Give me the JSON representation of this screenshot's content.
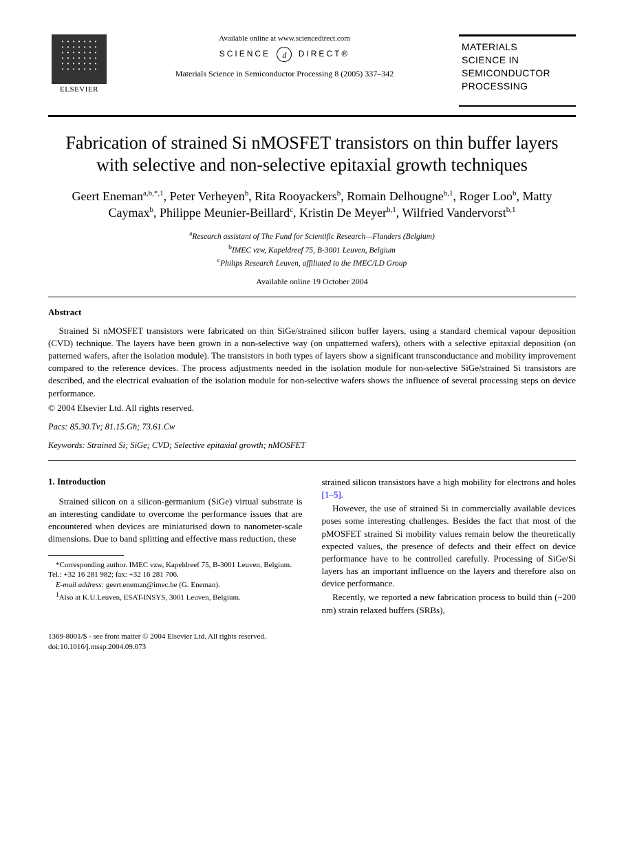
{
  "header": {
    "publisher": "ELSEVIER",
    "available_online": "Available online at www.sciencedirect.com",
    "sd_left": "SCIENCE",
    "sd_d": "d",
    "sd_right": "DIRECT®",
    "citation": "Materials Science in Semiconductor Processing 8 (2005) 337–342",
    "journal_box_l1": "MATERIALS",
    "journal_box_l2": "SCIENCE IN",
    "journal_box_l3": "SEMICONDUCTOR",
    "journal_box_l4": "PROCESSING"
  },
  "title": "Fabrication of strained Si nMOSFET transistors on thin buffer layers with selective and non-selective epitaxial growth techniques",
  "authors_html": "Geert Eneman<sup>a,b,*,1</sup>, Peter Verheyen<sup>b</sup>, Rita Rooyackers<sup>b</sup>, Romain Delhougne<sup>b,1</sup>, Roger Loo<sup>b</sup>, Matty Caymax<sup>b</sup>, Philippe Meunier-Beillard<sup>c</sup>, Kristin De Meyer<sup>b,1</sup>, Wilfried Vandervorst<sup>b,1</sup>",
  "affiliations": {
    "a": "Research assistant of The Fund for Scientific Research—Flanders (Belgium)",
    "b": "IMEC vzw, Kapeldreef 75, B-3001 Leuven, Belgium",
    "c": "Philips Research Leuven, affiliated to the IMEC/LD Group"
  },
  "available_date": "Available online 19 October 2004",
  "abstract": {
    "heading": "Abstract",
    "text": "Strained Si nMOSFET transistors were fabricated on thin SiGe/strained silicon buffer layers, using a standard chemical vapour deposition (CVD) technique. The layers have been grown in a non-selective way (on unpatterned wafers), others with a selective epitaxial deposition (on patterned wafers, after the isolation module). The transistors in both types of layers show a significant transconductance and mobility improvement compared to the reference devices. The process adjustments needed in the isolation module for non-selective SiGe/strained Si transistors are described, and the electrical evaluation of the isolation module for non-selective wafers shows the influence of several processing steps on device performance.",
    "copyright": "© 2004 Elsevier Ltd. All rights reserved."
  },
  "pacs": {
    "label": "Pacs:",
    "value": "85.30.Tv; 81.15.Gh; 73.61.Cw"
  },
  "keywords": {
    "label": "Keywords:",
    "value": "Strained Si; SiGe; CVD; Selective epitaxial growth; nMOSFET"
  },
  "intro": {
    "heading": "1. Introduction",
    "p1": "Strained silicon on a silicon-germanium (SiGe) virtual substrate is an interesting candidate to overcome the performance issues that are encountered when devices are miniaturised down to nanometer-scale dimensions. Due to band splitting and effective mass reduction, these",
    "p2a": "strained silicon transistors have a high mobility for electrons and holes ",
    "p2_ref": "[1–5]",
    "p2b": ".",
    "p3": "However, the use of strained Si in commercially available devices poses some interesting challenges. Besides the fact that most of the pMOSFET strained Si mobility values remain below the theoretically expected values, the presence of defects and their effect on device performance have to be controlled carefully. Processing of SiGe/Si layers has an important influence on the layers and therefore also on device performance.",
    "p4": "Recently, we reported a new fabrication process to build thin (~200 nm) strain relaxed buffers (SRBs),"
  },
  "footnotes": {
    "corr": "*Corresponding author. IMEC vzw, Kapeldreef 75, B-3001 Leuven, Belgium. Tel.: +32 16 281 982; fax: +32 16 281 706.",
    "email_label": "E-mail address:",
    "email": "geert.eneman@imec.be (G. Eneman).",
    "also": "Also at K.U.Leuven, ESAT-INSYS, 3001 Leuven, Belgium.",
    "also_marker": "1"
  },
  "footer": {
    "issn": "1369-8001/$ - see front matter © 2004 Elsevier Ltd. All rights reserved.",
    "doi": "doi:10.1016/j.mssp.2004.09.073"
  },
  "colors": {
    "text": "#000000",
    "background": "#ffffff",
    "link": "#0000ee",
    "rule": "#000000"
  },
  "typography": {
    "body_family": "Times New Roman",
    "sans_family": "Arial",
    "title_size_pt": 20,
    "authors_size_pt": 14,
    "body_size_pt": 10,
    "footnote_size_pt": 8
  }
}
